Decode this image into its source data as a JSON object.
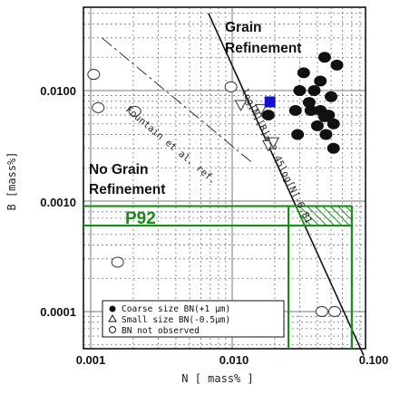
{
  "chart_data": {
    "type": "scatter",
    "xlabel": "N  [ mass% ]",
    "ylabel": "B [mass%]",
    "x_scale": "log",
    "y_scale": "log",
    "xlim": [
      0.001,
      0.1
    ],
    "ylim": [
      4e-05,
      0.05
    ],
    "x_ticks": [
      "0.001",
      "0.010",
      "0.100"
    ],
    "y_ticks": [
      "0.0001",
      "0.0010",
      "0.0100"
    ],
    "grid": true,
    "region_labels": [
      {
        "text": "Grain"
      },
      {
        "text": "Refinement"
      },
      {
        "text": "No Grain"
      },
      {
        "text": "Refinement"
      }
    ],
    "annotations": {
      "fountain": "Fountain et al. ref.",
      "boundary": "log[N][B]=-2.45log[N]-6.81",
      "p92": "P92"
    },
    "p92_window": {
      "N": [
        0.025,
        0.07
      ],
      "B": [
        0.0006,
        0.0009
      ]
    },
    "legend": [
      {
        "marker": "filled-circle",
        "label": "Coarse size BN(+1 μm)"
      },
      {
        "marker": "open-triangle",
        "label": "Small size BN(-0.5μm)"
      },
      {
        "marker": "open-circle",
        "label": "BN not observed"
      }
    ],
    "series": [
      {
        "marker": "filled-circle",
        "points": [
          [
            0.045,
            0.02
          ],
          [
            0.055,
            0.017
          ],
          [
            0.032,
            0.0145
          ],
          [
            0.042,
            0.0122
          ],
          [
            0.038,
            0.01
          ],
          [
            0.03,
            0.01
          ],
          [
            0.05,
            0.0088
          ],
          [
            0.035,
            0.0078
          ],
          [
            0.028,
            0.0066
          ],
          [
            0.036,
            0.0066
          ],
          [
            0.042,
            0.0066
          ],
          [
            0.048,
            0.006
          ],
          [
            0.045,
            0.0058
          ],
          [
            0.052,
            0.005
          ],
          [
            0.04,
            0.0048
          ],
          [
            0.029,
            0.004
          ],
          [
            0.046,
            0.004
          ],
          [
            0.052,
            0.003
          ],
          [
            0.018,
            0.006
          ]
        ]
      },
      {
        "marker": "open-triangle",
        "points": [
          [
            0.0115,
            0.0074
          ],
          [
            0.018,
            0.0032
          ],
          [
            0.0195,
            0.0034
          ],
          [
            0.016,
            0.0068
          ]
        ]
      },
      {
        "marker": "open-circle",
        "points": [
          [
            0.00105,
            0.014
          ],
          [
            0.00113,
            0.007
          ],
          [
            0.00205,
            0.0065
          ],
          [
            0.0098,
            0.0108
          ],
          [
            0.00155,
            0.00028
          ],
          [
            0.00345,
            0.0001
          ],
          [
            0.043,
            0.0001
          ],
          [
            0.053,
            0.0001
          ]
        ]
      },
      {
        "marker": "filled-square",
        "color": "#1010d0",
        "points": [
          [
            0.0185,
            0.0079
          ]
        ]
      }
    ],
    "colors": {
      "frame": "#111111",
      "grid": "#777777",
      "highlight": "#1a8a1a",
      "square": "#1010d0"
    }
  }
}
